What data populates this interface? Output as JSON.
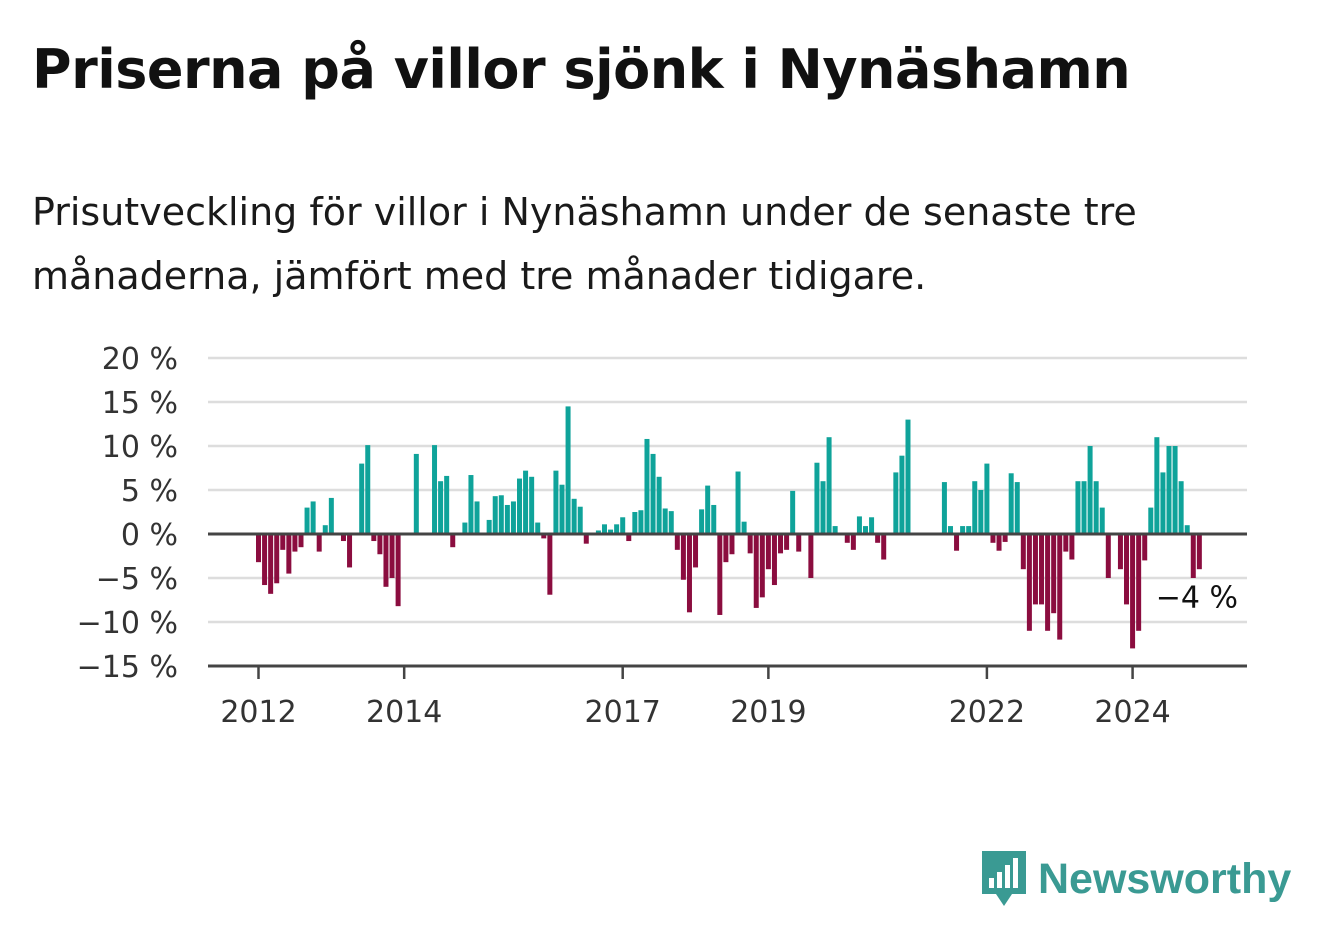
{
  "title": "Priserna på villor sjönk i Nynäshamn",
  "subtitle": "Prisutveckling för villor i Nynäshamn under de senaste tre månaderna, jämfört med tre månader tidigare.",
  "brand": {
    "name": "Newsworthy",
    "icon": "newsworthy-logo-icon"
  },
  "colors": {
    "positive": "#0fa39a",
    "negative": "#8b0d3f",
    "grid": "#dddddd",
    "axis": "#444444",
    "brand": "#3a9a93"
  },
  "chart_data": {
    "type": "bar",
    "title": "Priserna på villor sjönk i Nynäshamn",
    "xlabel": "",
    "ylabel": "",
    "ylim": [
      -15,
      20
    ],
    "y_ticks": [
      20,
      15,
      10,
      5,
      0,
      -5,
      -10,
      -15
    ],
    "y_tick_labels": [
      "20 %",
      "15 %",
      "10 %",
      "5 %",
      "0 %",
      "−5 %",
      "−10 %",
      "−15 %"
    ],
    "x_ticks": [
      {
        "label": "2012",
        "index": 0
      },
      {
        "label": "2014",
        "index": 24
      },
      {
        "label": "2017",
        "index": 60
      },
      {
        "label": "2019",
        "index": 84
      },
      {
        "label": "2022",
        "index": 120
      },
      {
        "label": "2024",
        "index": 144
      }
    ],
    "grid": true,
    "last_value_label": "−4 %",
    "values": [
      -3.2,
      -5.8,
      -6.8,
      -5.6,
      -1.8,
      -4.5,
      -2.0,
      -1.5,
      3.0,
      3.7,
      -2.0,
      1.0,
      4.1,
      0,
      -0.8,
      -3.8,
      0,
      8.0,
      10.1,
      -0.8,
      -2.3,
      -6.0,
      -5.0,
      -8.2,
      0,
      0,
      9.1,
      0,
      0,
      10.1,
      6.0,
      6.6,
      -1.5,
      0,
      1.3,
      6.7,
      3.7,
      0,
      1.6,
      4.3,
      4.4,
      3.3,
      3.7,
      6.3,
      7.2,
      6.5,
      1.3,
      -0.5,
      -6.9,
      7.2,
      5.6,
      14.5,
      4.0,
      3.1,
      -1.1,
      0,
      0.4,
      1.1,
      0.5,
      1.1,
      1.9,
      -0.8,
      2.5,
      2.7,
      10.8,
      9.1,
      6.5,
      2.9,
      2.6,
      -1.8,
      -5.2,
      -8.9,
      -3.8,
      2.8,
      5.5,
      3.3,
      -9.2,
      -3.2,
      -2.3,
      7.1,
      1.4,
      -2.2,
      -8.4,
      -7.2,
      -4.0,
      -5.8,
      -2.2,
      -1.8,
      4.9,
      -2.0,
      0,
      -5.0,
      8.1,
      6.0,
      11.0,
      0.9,
      0,
      -1.0,
      -1.8,
      2.0,
      0.9,
      1.9,
      -1.0,
      -2.9,
      0,
      7.0,
      8.9,
      13.0,
      0,
      0,
      0,
      0,
      0,
      5.9,
      0.9,
      -1.9,
      0.9,
      0.9,
      6.0,
      5.0,
      8.0,
      -1.0,
      -1.9,
      -0.9,
      6.9,
      5.9,
      -4.0,
      -11.0,
      -8.0,
      -8.0,
      -11.0,
      -9.0,
      -12.0,
      -2.0,
      -2.9,
      6.0,
      6.0,
      10.0,
      6.0,
      3.0,
      -5.0,
      0,
      -4.0,
      -8.0,
      -13.0,
      -11.0,
      -3.0,
      3.0,
      11.0,
      7.0,
      10.0,
      10.0,
      6.0,
      1.0,
      -5.0,
      -4.0
    ]
  }
}
